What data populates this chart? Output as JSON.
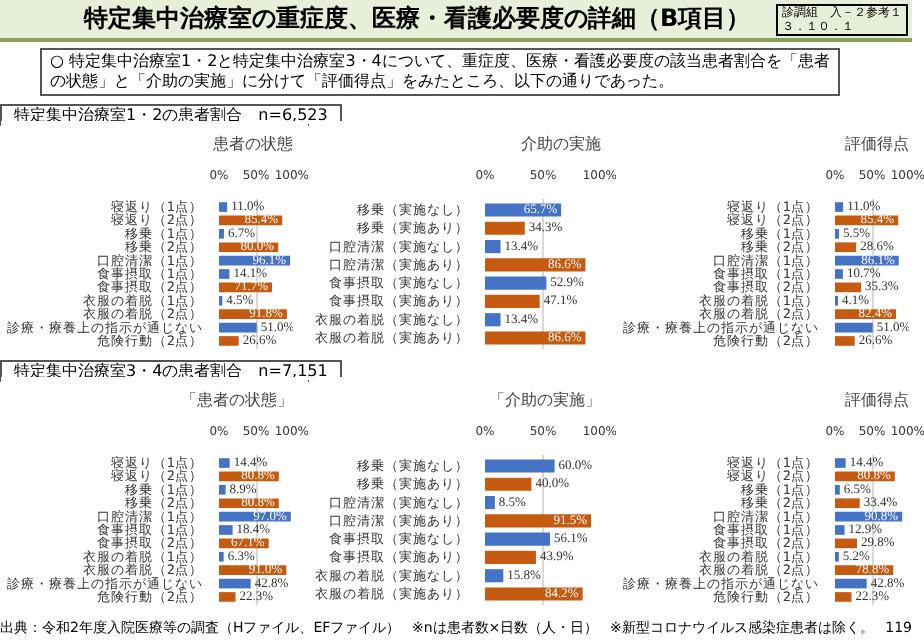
{
  "chart_data": [
    {
      "type": "bar",
      "orientation": "horizontal",
      "title": "患者の状態",
      "subtitle": "特定集中治療室1・2の患者割合　n=6,523",
      "annotations": [
        "特定集中治療室の重症度、医療・看護必要度の詳細（B項目）",
        "診調組　入－２参考１",
        "３．１０．１",
        "○ 特定集中治療室1・2と特定集中治療室3・4について、重症度、医療・看護必要度の該当患者割合を「患者の状態」と「介助の実施」に分けて「評価得点」をみたところ、以下の通りであった。"
      ],
      "categories": [
        "寝返り（1点）",
        "寝返り（2点）",
        "移乗（1点）",
        "移乗（2点）",
        "口腔清潔（1点）",
        "食事摂取（1点）",
        "食事摂取（2点）",
        "衣服の着脱（1点）",
        "衣服の着脱（2点）",
        "診療・療養上の指示が通じない",
        "危険行動（2点）"
      ],
      "values": [
        11.0,
        85.4,
        6.7,
        80.0,
        96.1,
        14.1,
        71.7,
        4.5,
        91.8,
        51.0,
        26.6
      ],
      "value_labels": [
        "11.0%",
        "85.4%",
        "6.7%",
        "80.0%",
        "96.1%",
        "14.1%",
        "71.7%",
        "4.5%",
        "91.8%",
        "51.0%",
        "26.6%"
      ],
      "colors": [
        "#4472c4",
        "#c55a11",
        "#4472c4",
        "#c55a11",
        "#4472c4",
        "#4472c4",
        "#c55a11",
        "#4472c4",
        "#c55a11",
        "#4472c4",
        "#c55a11"
      ],
      "xlim": [
        0,
        100
      ],
      "xticks": [
        {
          "value": 0,
          "label": "0%"
        },
        {
          "value": 50,
          "label": "50%"
        },
        {
          "value": 100,
          "label": "100%"
        }
      ],
      "grid": "x"
    },
    {
      "type": "bar",
      "orientation": "horizontal",
      "title": "介助の実施",
      "categories": [
        "移乗（実施なし）",
        "移乗（実施あり）",
        "口腔清潔（実施なし）",
        "口腔清潔（実施あり）",
        "食事摂取（実施なし）",
        "食事摂取（実施あり）",
        "衣服の着脱（実施なし）",
        "衣服の着脱（実施あり）"
      ],
      "values": [
        65.7,
        34.3,
        13.4,
        86.6,
        52.9,
        47.1,
        13.4,
        86.6
      ],
      "value_labels": [
        "65.7%",
        "34.3%",
        "13.4%",
        "86.6%",
        "52.9%",
        "47.1%",
        "13.4%",
        "86.6%"
      ],
      "colors": [
        "#4472c4",
        "#c55a11",
        "#4472c4",
        "#c55a11",
        "#4472c4",
        "#c55a11",
        "#4472c4",
        "#c55a11"
      ],
      "xlim": [
        0,
        100
      ],
      "xticks": [
        {
          "value": 0,
          "label": "0%"
        },
        {
          "value": 50,
          "label": "50%"
        },
        {
          "value": 100,
          "label": "100%"
        }
      ],
      "grid": "x"
    },
    {
      "type": "bar",
      "orientation": "horizontal",
      "title": "評価得点",
      "categories": [
        "寝返り（1点）",
        "寝返り（2点）",
        "移乗（1点）",
        "移乗（2点）",
        "口腔清潔（1点）",
        "食事摂取（1点）",
        "食事摂取（2点）",
        "衣服の着脱（1点）",
        "衣服の着脱（2点）",
        "診療・療養上の指示が通じない",
        "危険行動（2点）"
      ],
      "values": [
        11.0,
        85.4,
        5.5,
        28.6,
        86.1,
        10.7,
        35.3,
        4.1,
        82.4,
        51.0,
        26.6
      ],
      "value_labels": [
        "11.0%",
        "85.4%",
        "5.5%",
        "28.6%",
        "86.1%",
        "10.7%",
        "35.3%",
        "4.1%",
        "82.4%",
        "51.0%",
        "26.6%"
      ],
      "colors": [
        "#4472c4",
        "#c55a11",
        "#4472c4",
        "#c55a11",
        "#4472c4",
        "#4472c4",
        "#c55a11",
        "#4472c4",
        "#c55a11",
        "#4472c4",
        "#c55a11"
      ],
      "xlim": [
        0,
        100
      ],
      "xticks": [
        {
          "value": 0,
          "label": "0%"
        },
        {
          "value": 50,
          "label": "50%"
        },
        {
          "value": 100,
          "label": "100%"
        }
      ],
      "grid": "x"
    },
    {
      "type": "bar",
      "orientation": "horizontal",
      "title": "「患者の状態」",
      "subtitle": "特定集中治療室3・4の患者割合　n=7,151",
      "categories": [
        "寝返り（1点）",
        "寝返り（2点）",
        "移乗（1点）",
        "移乗（2点）",
        "口腔清潔（1点）",
        "食事摂取（1点）",
        "食事摂取（2点）",
        "衣服の着脱（1点）",
        "衣服の着脱（2点）",
        "診療・療養上の指示が通じない",
        "危険行動（2点）"
      ],
      "values": [
        14.4,
        80.8,
        8.9,
        80.8,
        97.0,
        18.4,
        67.1,
        6.3,
        91.0,
        42.8,
        22.3
      ],
      "value_labels": [
        "14.4%",
        "80.8%",
        "8.9%",
        "80.8%",
        "97.0%",
        "18.4%",
        "67.1%",
        "6.3%",
        "91.0%",
        "42.8%",
        "22.3%"
      ],
      "colors": [
        "#4472c4",
        "#c55a11",
        "#4472c4",
        "#c55a11",
        "#4472c4",
        "#4472c4",
        "#c55a11",
        "#4472c4",
        "#c55a11",
        "#4472c4",
        "#c55a11"
      ],
      "xlim": [
        0,
        100
      ],
      "xticks": [
        {
          "value": 0,
          "label": "0%"
        },
        {
          "value": 50,
          "label": "50%"
        },
        {
          "value": 100,
          "label": "100%"
        }
      ],
      "grid": "x"
    },
    {
      "type": "bar",
      "orientation": "horizontal",
      "title": "「介助の実施」",
      "categories": [
        "移乗（実施なし）",
        "移乗（実施あり）",
        "口腔清潔（実施なし）",
        "口腔清潔（実施あり）",
        "食事摂取（実施なし）",
        "食事摂取（実施あり）",
        "衣服の着脱（実施なし）",
        "衣服の着脱（実施あり）"
      ],
      "values": [
        60.0,
        40.0,
        8.5,
        91.5,
        56.1,
        43.9,
        15.8,
        84.2
      ],
      "value_labels": [
        "60.0%",
        "40.0%",
        "8.5%",
        "91.5%",
        "56.1%",
        "43.9%",
        "15.8%",
        "84.2%"
      ],
      "colors": [
        "#4472c4",
        "#c55a11",
        "#4472c4",
        "#c55a11",
        "#4472c4",
        "#c55a11",
        "#4472c4",
        "#c55a11"
      ],
      "xlim": [
        0,
        100
      ],
      "xticks": [
        {
          "value": 0,
          "label": "0%"
        },
        {
          "value": 50,
          "label": "50%"
        },
        {
          "value": 100,
          "label": "100%"
        }
      ],
      "grid": "x"
    },
    {
      "type": "bar",
      "orientation": "horizontal",
      "title": "評価得点",
      "annotations": [
        "出典：令和2年度入院医療等の調査（Hファイル、EFファイル）",
        "※nは患者数×日数（人・日）",
        "※新型コロナウイルス感染症患者は除く。",
        "119"
      ],
      "categories": [
        "寝返り（1点）",
        "寝返り（2点）",
        "移乗（1点）",
        "移乗（2点）",
        "口腔清潔（1点）",
        "食事摂取（1点）",
        "食事摂取（2点）",
        "衣服の着脱（1点）",
        "衣服の着脱（2点）",
        "診療・療養上の指示が通じない",
        "危険行動（2点）"
      ],
      "values": [
        14.4,
        80.8,
        6.5,
        33.4,
        90.8,
        12.9,
        29.8,
        5.2,
        78.8,
        42.8,
        22.3
      ],
      "value_labels": [
        "14.4%",
        "80.8%",
        "6.5%",
        "33.4%",
        "90.8%",
        "12.9%",
        "29.8%",
        "5.2%",
        "78.8%",
        "42.8%",
        "22.3%"
      ],
      "colors": [
        "#4472c4",
        "#c55a11",
        "#4472c4",
        "#c55a11",
        "#4472c4",
        "#4472c4",
        "#c55a11",
        "#4472c4",
        "#c55a11",
        "#4472c4",
        "#c55a11"
      ],
      "xlim": [
        0,
        100
      ],
      "xticks": [
        {
          "value": 0,
          "label": "0%"
        },
        {
          "value": 50,
          "label": "50%"
        },
        {
          "value": 100,
          "label": "100%"
        }
      ],
      "grid": "x"
    }
  ]
}
